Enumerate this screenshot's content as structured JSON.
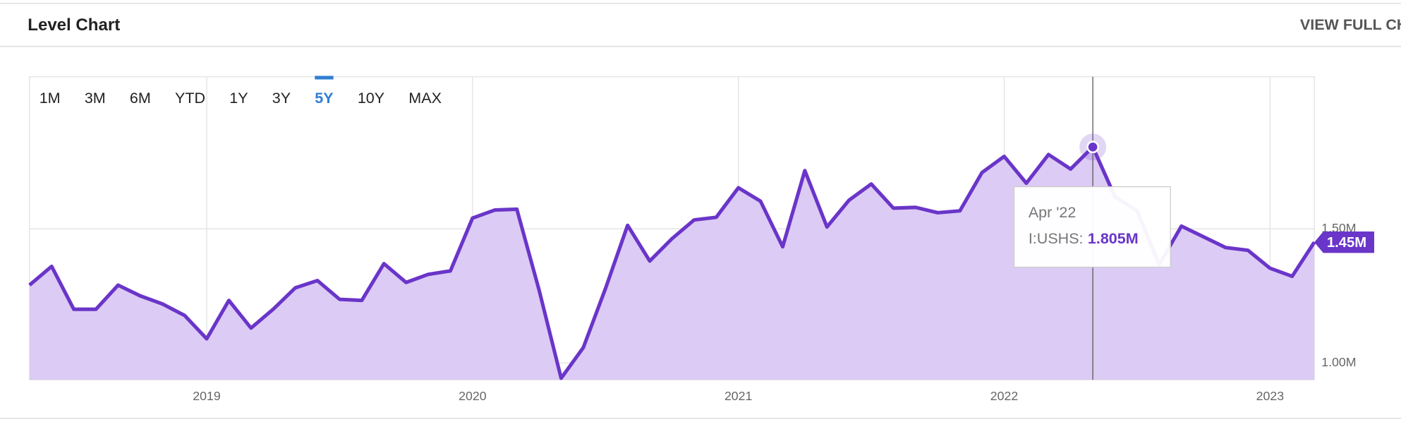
{
  "header": {
    "title": "Level Chart",
    "link": "VIEW FULL CHART"
  },
  "range_buttons": {
    "options": [
      "1M",
      "3M",
      "6M",
      "YTD",
      "1Y",
      "3Y",
      "5Y",
      "10Y",
      "MAX"
    ],
    "active": 6
  },
  "chart_data": {
    "type": "area",
    "categories": [
      null,
      null,
      null,
      null,
      null,
      null,
      null,
      null,
      "2019",
      null,
      null,
      null,
      null,
      null,
      null,
      null,
      null,
      null,
      null,
      null,
      "2020",
      null,
      null,
      null,
      null,
      null,
      null,
      null,
      null,
      null,
      null,
      null,
      "2021",
      null,
      null,
      null,
      null,
      null,
      null,
      null,
      null,
      null,
      null,
      null,
      "2022",
      null,
      null,
      null,
      null,
      null,
      null,
      null,
      null,
      null,
      null,
      null,
      "2023",
      null,
      null
    ],
    "values": [
      1.29,
      1.36,
      1.2,
      1.2,
      1.29,
      1.25,
      1.22,
      1.177,
      1.09,
      1.233,
      1.13,
      1.2,
      1.28,
      1.307,
      1.237,
      1.233,
      1.37,
      1.3,
      1.33,
      1.343,
      1.54,
      1.57,
      1.573,
      1.273,
      0.943,
      1.057,
      1.277,
      1.513,
      1.38,
      1.463,
      1.533,
      1.543,
      1.653,
      1.603,
      1.433,
      1.717,
      1.507,
      1.607,
      1.667,
      1.577,
      1.58,
      1.56,
      1.567,
      1.71,
      1.77,
      1.67,
      1.777,
      1.723,
      1.805,
      1.62,
      1.567,
      1.367,
      1.51,
      1.47,
      1.43,
      1.42,
      1.353,
      1.323,
      1.45
    ],
    "color": "#6a35c9",
    "fill": "#dccbf4",
    "ylim": [
      0.937,
      2.067
    ],
    "yticks": [
      {
        "value": 1.0,
        "label": "1.00M"
      },
      {
        "value": 1.5,
        "label": "1.50M"
      }
    ],
    "grid": true,
    "tooltip": {
      "index": 48,
      "label": "Apr '22",
      "series": "I:USHS:",
      "value": 1.805,
      "value_label": "1.805M"
    },
    "last_value": {
      "value": 1.45,
      "value_label": "1.45M"
    }
  }
}
